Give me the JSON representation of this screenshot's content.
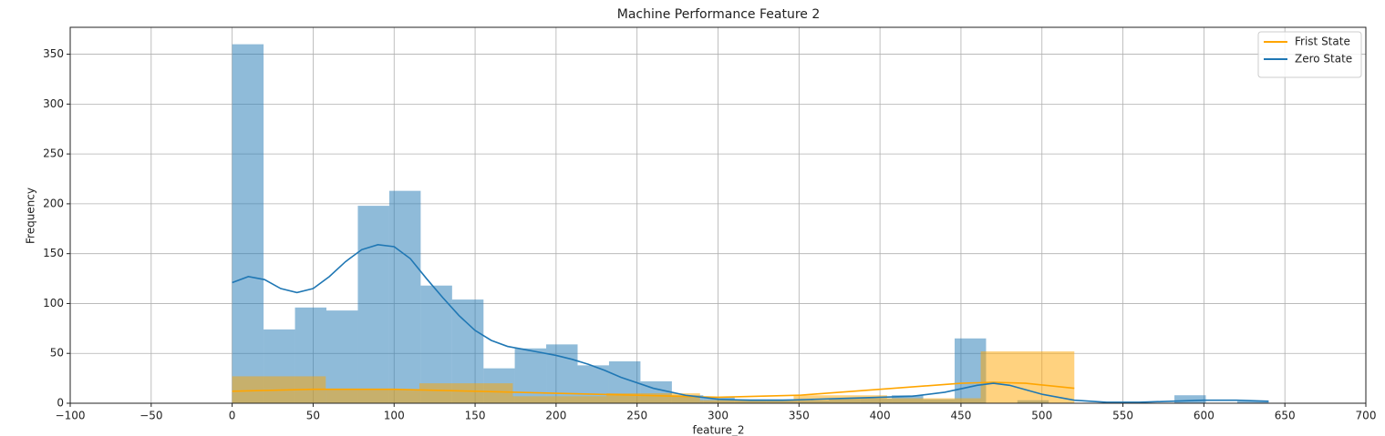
{
  "chart_data": {
    "type": "histogram",
    "title": "Machine Performance Feature 2",
    "xlabel": "feature_2",
    "ylabel": "Frequency",
    "xlim": [
      -100,
      700
    ],
    "ylim": [
      0,
      377
    ],
    "xticks": [
      {
        "value": -100,
        "label": "−100"
      },
      {
        "value": -50,
        "label": "−50"
      },
      0,
      50,
      100,
      150,
      200,
      250,
      300,
      350,
      400,
      450,
      500,
      550,
      600,
      650,
      700
    ],
    "yticks": [
      0,
      50,
      100,
      150,
      200,
      250,
      300,
      350
    ],
    "grid": true,
    "legend": "upper right",
    "series": [
      {
        "name": "Zero State",
        "color": "#1f77b4",
        "bins": [
          0,
          19.4,
          38.8,
          58.2,
          77.6,
          97,
          116.4,
          135.8,
          155.2,
          174.5,
          193.9,
          213.3,
          232.7,
          252.1,
          271.5,
          290.9,
          310.3,
          329.7,
          349.1,
          368.5,
          387.9,
          407.3,
          426.7,
          446.1,
          465.5,
          484.8,
          504.2,
          523.6,
          543,
          562.4,
          581.8,
          601.2,
          620.6,
          640
        ],
        "values": [
          360,
          74,
          96,
          93,
          198,
          213,
          118,
          104,
          35,
          55,
          59,
          38,
          42,
          22,
          8,
          6,
          4,
          4,
          3,
          5,
          5,
          8,
          4,
          65,
          0,
          3,
          0,
          0,
          0,
          0,
          8,
          0,
          2
        ],
        "kde_x": [
          0,
          10,
          20,
          30,
          40,
          50,
          60,
          70,
          80,
          90,
          100,
          110,
          120,
          130,
          140,
          150,
          160,
          170,
          180,
          190,
          200,
          210,
          220,
          230,
          240,
          260,
          280,
          300,
          320,
          340,
          360,
          380,
          400,
          420,
          440,
          460,
          470,
          480,
          500,
          520,
          540,
          560,
          580,
          600,
          620,
          640
        ],
        "kde_values": [
          121,
          127,
          124,
          115,
          111,
          115,
          127,
          142,
          154,
          159,
          157,
          145,
          125,
          106,
          88,
          73,
          63,
          57,
          54,
          51,
          48,
          44,
          39,
          33,
          26,
          15,
          8,
          4,
          3,
          3,
          4,
          5,
          6,
          7,
          11,
          18,
          20,
          18,
          9,
          3,
          1,
          1,
          2,
          3,
          3,
          2
        ]
      },
      {
        "name": "Frist State",
        "color": "#ffa500",
        "bins": [
          0,
          57.8,
          115.6,
          173.3,
          231.1,
          288.9,
          346.7,
          404.4,
          462.2,
          520
        ],
        "values": [
          27,
          14,
          20,
          7,
          10,
          3,
          8,
          5,
          52
        ],
        "kde_x": [
          0,
          50,
          100,
          150,
          200,
          250,
          300,
          350,
          400,
          450,
          470,
          490,
          520
        ],
        "kde_values": [
          12,
          14,
          14,
          12,
          10,
          8,
          6,
          8,
          14,
          20,
          21,
          20,
          15
        ]
      }
    ]
  }
}
